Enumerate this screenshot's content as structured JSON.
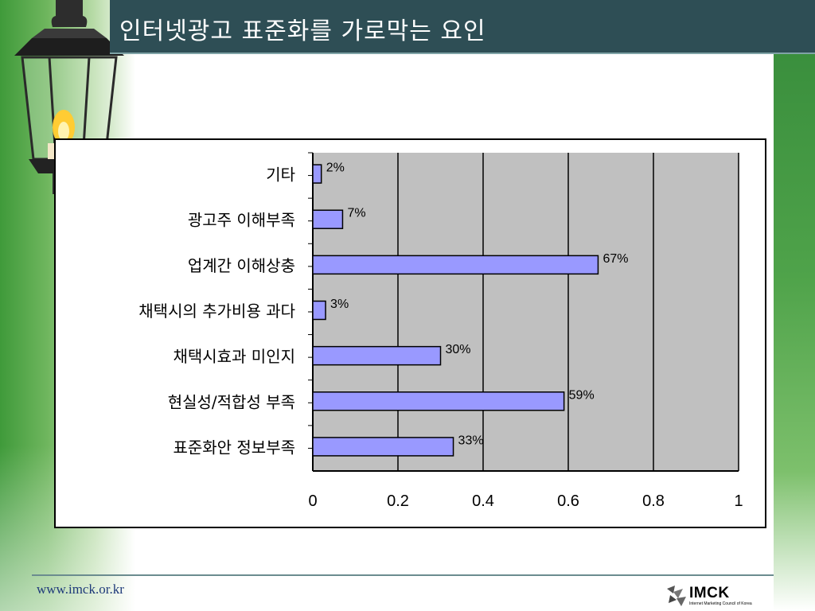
{
  "slide": {
    "title": "인터넷광고 표준화를 가로막는 요인",
    "footer_url": "www.imck.or.kr",
    "logo_text": "IMCK",
    "logo_subtext": "Internet Marketing Council of Korea",
    "colors": {
      "title_bar": "#2e4e55",
      "bar_fill": "#9999ff",
      "plot_bg": "#c0c0c0",
      "accent_green": "#4fa34a"
    }
  },
  "chart_data": {
    "type": "bar",
    "orientation": "horizontal",
    "categories": [
      "기타",
      "광고주 이해부족",
      "업계간 이해상충",
      "채택시의 추가비용 과다",
      "채택시효과 미인지",
      "현실성/적합성 부족",
      "표준화안 정보부족"
    ],
    "values": [
      0.02,
      0.07,
      0.67,
      0.03,
      0.3,
      0.59,
      0.33
    ],
    "data_labels": [
      "2%",
      "7%",
      "67%",
      "3%",
      "30%",
      "59%",
      "33%"
    ],
    "x_ticks": [
      "0",
      "0.2",
      "0.4",
      "0.6",
      "0.8",
      "1"
    ],
    "xlim": [
      0,
      1
    ],
    "grid": true,
    "legend": "none"
  }
}
